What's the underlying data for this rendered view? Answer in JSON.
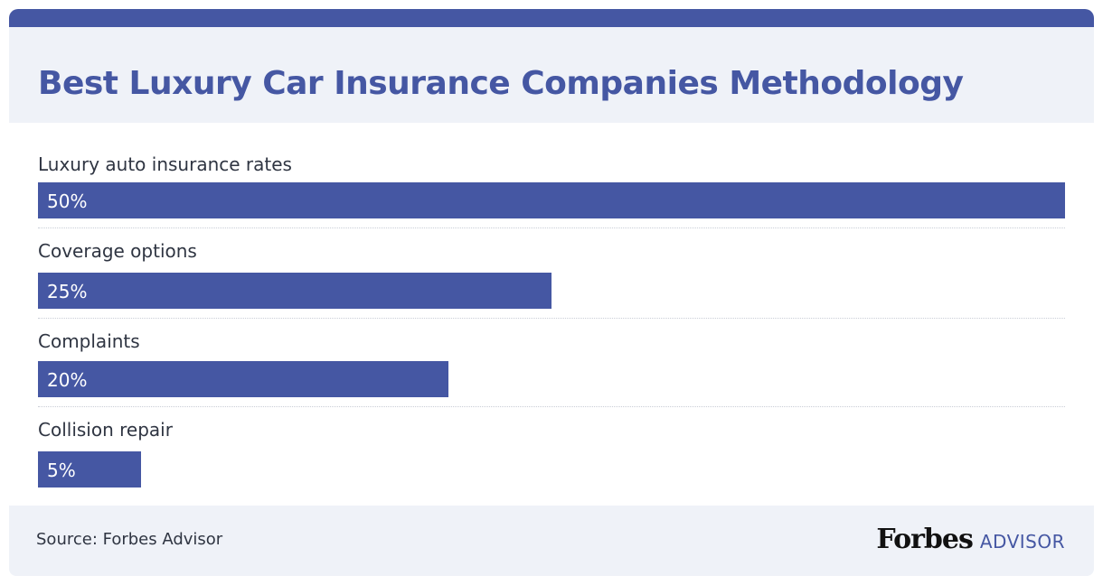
{
  "chart_data": {
    "type": "bar",
    "orientation": "horizontal",
    "title": "Best Luxury Car Insurance Companies Methodology",
    "categories": [
      "Luxury auto insurance rates",
      "Coverage options",
      "Complaints",
      "Collision repair"
    ],
    "values": [
      50,
      25,
      20,
      5
    ],
    "value_labels": [
      "50%",
      "25%",
      "20%",
      "5%"
    ],
    "xlim": [
      0,
      50
    ],
    "grid": false,
    "legend": "none"
  },
  "footer": {
    "source": "Source: Forbes Advisor",
    "logo_forbes": "Forbes",
    "logo_advisor": "ADVISOR"
  },
  "colors": {
    "accent": "#4557a3",
    "header_bg": "#eff2f8",
    "text": "#2f3542"
  }
}
